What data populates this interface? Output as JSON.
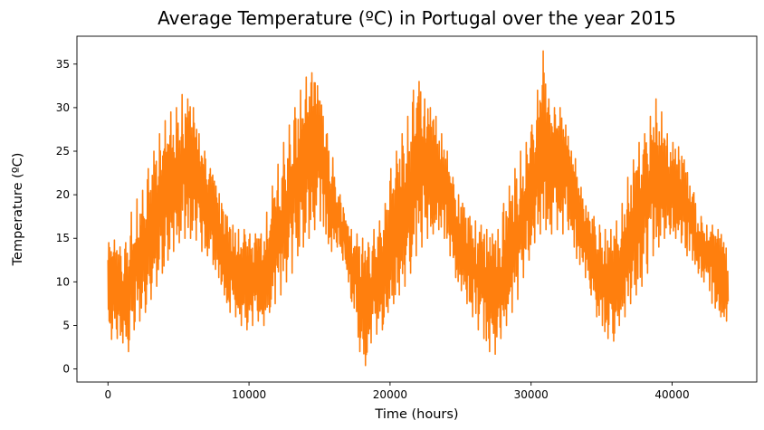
{
  "chart_data": {
    "type": "line",
    "title": "Average Temperature (ºC) in Portugal over the year 2015",
    "xlabel": "Time (hours)",
    "ylabel": "Temperature (ºC)",
    "xlim": [
      -2200,
      46000
    ],
    "ylim": [
      -1.5,
      38.2
    ],
    "xticks": [
      0,
      10000,
      20000,
      30000,
      40000
    ],
    "yticks": [
      0,
      5,
      10,
      15,
      20,
      25,
      30,
      35
    ],
    "grid": false,
    "series": [
      {
        "color": "#ff7f0e",
        "x_step": 400,
        "x_start": 0,
        "min": [
          3.4,
          3.5,
          3.0,
          2.0,
          4.5,
          5.5,
          6.5,
          8.0,
          9.5,
          11.0,
          12.5,
          13.5,
          14.5,
          15.0,
          15.0,
          14.8,
          13.5,
          13.0,
          12.0,
          10.5,
          8.5,
          6.5,
          6.0,
          5.0,
          4.5,
          5.0,
          5.5,
          5.0,
          6.5,
          7.5,
          8.5,
          10.0,
          11.0,
          13.0,
          14.0,
          15.0,
          16.0,
          17.0,
          15.5,
          13.5,
          14.0,
          12.5,
          10.0,
          7.0,
          2.0,
          0.4,
          3.0,
          4.0,
          4.5,
          6.5,
          7.5,
          8.5,
          9.5,
          11.0,
          13.0,
          14.0,
          15.0,
          15.5,
          16.0,
          15.0,
          13.0,
          10.5,
          9.0,
          7.5,
          6.0,
          4.5,
          3.5,
          2.0,
          1.7,
          3.5,
          5.0,
          6.5,
          8.0,
          10.5,
          12.5,
          14.5,
          15.5,
          16.0,
          15.5,
          16.0,
          15.5,
          16.0,
          14.0,
          12.0,
          10.5,
          8.5,
          6.0,
          5.0,
          3.5,
          3.2,
          5.0,
          6.0,
          7.5,
          8.5,
          9.5,
          11.0,
          13.0,
          14.0,
          15.0,
          15.5,
          15.0,
          14.5,
          13.0,
          12.5,
          11.0,
          10.0,
          9.0,
          7.0,
          6.0,
          5.5
        ],
        "max": [
          14.5,
          14.8,
          14.0,
          14.5,
          18.0,
          19.5,
          20.5,
          23.0,
          25.0,
          27.0,
          28.5,
          29.5,
          30.0,
          31.5,
          31.0,
          30.0,
          27.0,
          25.0,
          23.0,
          21.0,
          19.0,
          17.5,
          16.5,
          16.0,
          16.0,
          15.5,
          15.5,
          15.5,
          18.0,
          21.0,
          23.5,
          26.0,
          28.0,
          30.0,
          32.0,
          33.5,
          34.0,
          32.5,
          29.0,
          25.0,
          22.0,
          20.0,
          17.0,
          16.0,
          15.5,
          15.0,
          14.5,
          16.0,
          17.0,
          19.0,
          23.0,
          25.0,
          27.0,
          29.0,
          32.0,
          33.0,
          31.0,
          30.0,
          29.0,
          27.0,
          25.0,
          22.0,
          20.0,
          18.5,
          17.5,
          17.0,
          16.5,
          16.0,
          15.5,
          16.0,
          19.0,
          21.0,
          23.0,
          25.0,
          26.0,
          28.0,
          32.0,
          36.5,
          31.0,
          30.0,
          30.0,
          28.0,
          25.0,
          22.0,
          19.5,
          18.0,
          17.5,
          16.5,
          16.0,
          16.0,
          17.0,
          19.0,
          22.0,
          24.0,
          26.0,
          27.0,
          29.0,
          31.0,
          29.5,
          27.0,
          26.0,
          25.5,
          24.0,
          21.0,
          19.0,
          17.5,
          16.5,
          16.5,
          16.0,
          14.5
        ]
      }
    ]
  }
}
